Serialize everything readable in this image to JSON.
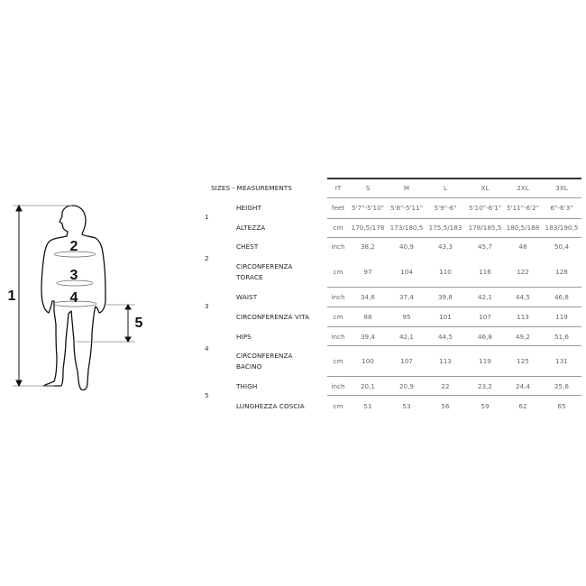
{
  "figure": {
    "labels": [
      "1",
      "2",
      "3",
      "4",
      "5"
    ]
  },
  "table": {
    "title": "SIZES - MEASUREMENTS",
    "unit_header": "IT",
    "sizes": [
      "S",
      "M",
      "L",
      "XL",
      "2XL",
      "3XL"
    ],
    "groups": [
      {
        "number": "1",
        "rows": [
          {
            "label": "HEIGHT",
            "unit": "feet",
            "values": [
              "5'7\"-5'10\"",
              "5'8\"-5'11\"",
              "5'9\"-6\"",
              "5'10\"-6'1\"",
              "5'11\"-6'2\"",
              "6\"-6'3\""
            ]
          },
          {
            "label": "ALTEZZA",
            "unit": "cm",
            "values": [
              "170,5/178",
              "173/180,5",
              "175,5/183",
              "178/185,5",
              "180,5/188",
              "183/190,5"
            ]
          }
        ]
      },
      {
        "number": "2",
        "rows": [
          {
            "label": "CHEST",
            "unit": "inch",
            "values": [
              "38,2",
              "40,9",
              "43,3",
              "45,7",
              "48",
              "50,4"
            ]
          },
          {
            "label": "CIRCONFERENZA",
            "label2": "TORACE",
            "unit": "cm",
            "values": [
              "97",
              "104",
              "110",
              "116",
              "122",
              "128"
            ]
          }
        ]
      },
      {
        "number": "3",
        "rows": [
          {
            "label": "WAIST",
            "unit": "inch",
            "values": [
              "34,6",
              "37,4",
              "39,8",
              "42,1",
              "44,5",
              "46,8"
            ]
          },
          {
            "label": "CIRCONFERENZA VITA",
            "unit": "cm",
            "values": [
              "88",
              "95",
              "101",
              "107",
              "113",
              "119"
            ]
          }
        ]
      },
      {
        "number": "4",
        "rows": [
          {
            "label": "HIPS",
            "unit": "inch",
            "values": [
              "39,4",
              "42,1",
              "44,5",
              "46,8",
              "49,2",
              "51,6"
            ]
          },
          {
            "label": "CIRCONFERENZA",
            "label2": "BACINO",
            "unit": "cm",
            "values": [
              "100",
              "107",
              "113",
              "119",
              "125",
              "131"
            ]
          }
        ]
      },
      {
        "number": "5",
        "rows": [
          {
            "label": "THIGH",
            "unit": "inch",
            "values": [
              "20,1",
              "20,9",
              "22",
              "23,2",
              "24,4",
              "25,6"
            ]
          },
          {
            "label": "LUNGHEZZA COSCIA",
            "unit": "cm",
            "values": [
              "51",
              "53",
              "56",
              "59",
              "62",
              "65"
            ]
          }
        ]
      }
    ]
  }
}
